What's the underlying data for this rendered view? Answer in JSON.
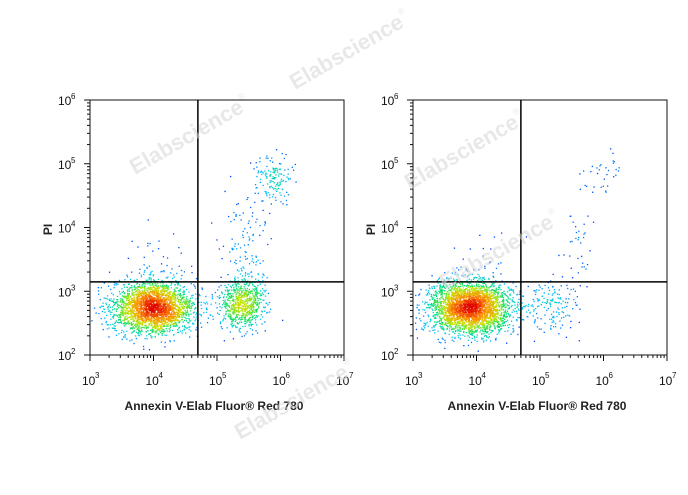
{
  "chart_data": [
    {
      "type": "scatter",
      "plot_style": "flow-cytometry density dot plot",
      "xlabel": "Annexin V-Elab Fluor® Red 780",
      "ylabel": "PI",
      "x_scale": "log",
      "y_scale": "log",
      "xlim": [
        1000,
        10000000
      ],
      "ylim": [
        100,
        1000000
      ],
      "x_ticks": [
        {
          "base": "10",
          "exp": "3",
          "value": 1000
        },
        {
          "base": "10",
          "exp": "4",
          "value": 10000
        },
        {
          "base": "10",
          "exp": "5",
          "value": 100000
        },
        {
          "base": "10",
          "exp": "6",
          "value": 1000000
        },
        {
          "base": "10",
          "exp": "7",
          "value": 10000000
        }
      ],
      "y_ticks": [
        {
          "base": "10",
          "exp": "2",
          "value": 100
        },
        {
          "base": "10",
          "exp": "3",
          "value": 1000
        },
        {
          "base": "10",
          "exp": "4",
          "value": 10000
        },
        {
          "base": "10",
          "exp": "5",
          "value": 100000
        },
        {
          "base": "10",
          "exp": "6",
          "value": 1000000
        }
      ],
      "quadrant_gate": {
        "x": 50000,
        "y": 1400
      },
      "populations": [
        {
          "x_center": 10000,
          "y_center": 550,
          "x_spread_decades": 0.32,
          "y_spread_decades": 0.2,
          "n": 2600
        },
        {
          "x_center": 250000,
          "y_center": 650,
          "x_spread_decades": 0.17,
          "y_spread_decades": 0.2,
          "n": 700
        },
        {
          "x_center": 300000,
          "y_center": 5000,
          "x_spread_decades": 0.2,
          "y_spread_decades": 0.45,
          "n": 120
        },
        {
          "x_center": 800000,
          "y_center": 60000,
          "x_spread_decades": 0.15,
          "y_spread_decades": 0.17,
          "n": 140
        },
        {
          "x_center": 10000,
          "y_center": 3000,
          "x_spread_decades": 0.3,
          "y_spread_decades": 0.25,
          "n": 40
        }
      ]
    },
    {
      "type": "scatter",
      "plot_style": "flow-cytometry density dot plot",
      "xlabel": "Annexin V-Elab Fluor® Red 780",
      "ylabel": "PI",
      "x_scale": "log",
      "y_scale": "log",
      "xlim": [
        1000,
        10000000
      ],
      "ylim": [
        100,
        1000000
      ],
      "x_ticks": [
        {
          "base": "10",
          "exp": "3",
          "value": 1000
        },
        {
          "base": "10",
          "exp": "4",
          "value": 10000
        },
        {
          "base": "10",
          "exp": "5",
          "value": 100000
        },
        {
          "base": "10",
          "exp": "6",
          "value": 1000000
        },
        {
          "base": "10",
          "exp": "7",
          "value": 10000000
        }
      ],
      "y_ticks": [
        {
          "base": "10",
          "exp": "2",
          "value": 100
        },
        {
          "base": "10",
          "exp": "3",
          "value": 1000
        },
        {
          "base": "10",
          "exp": "4",
          "value": 10000
        },
        {
          "base": "10",
          "exp": "5",
          "value": 100000
        },
        {
          "base": "10",
          "exp": "6",
          "value": 1000000
        }
      ],
      "quadrant_gate": {
        "x": 50000,
        "y": 1400
      },
      "populations": [
        {
          "x_center": 8000,
          "y_center": 550,
          "x_spread_decades": 0.32,
          "y_spread_decades": 0.2,
          "n": 3000
        },
        {
          "x_center": 150000,
          "y_center": 600,
          "x_spread_decades": 0.2,
          "y_spread_decades": 0.2,
          "n": 150
        },
        {
          "x_center": 400000,
          "y_center": 8000,
          "x_spread_decades": 0.15,
          "y_spread_decades": 0.45,
          "n": 40
        },
        {
          "x_center": 1000000,
          "y_center": 70000,
          "x_spread_decades": 0.18,
          "y_spread_decades": 0.15,
          "n": 30
        },
        {
          "x_center": 10000,
          "y_center": 3000,
          "x_spread_decades": 0.3,
          "y_spread_decades": 0.25,
          "n": 25
        }
      ]
    }
  ],
  "watermark": {
    "text": "Elabscience",
    "mark": "®"
  },
  "colors": {
    "density_scale": [
      "#0000ff",
      "#00c8ff",
      "#00e06a",
      "#c8e600",
      "#ff8a00",
      "#e00000"
    ],
    "axis": "#111111",
    "gate_line": "#000000",
    "watermark": "#d7d7d7"
  }
}
